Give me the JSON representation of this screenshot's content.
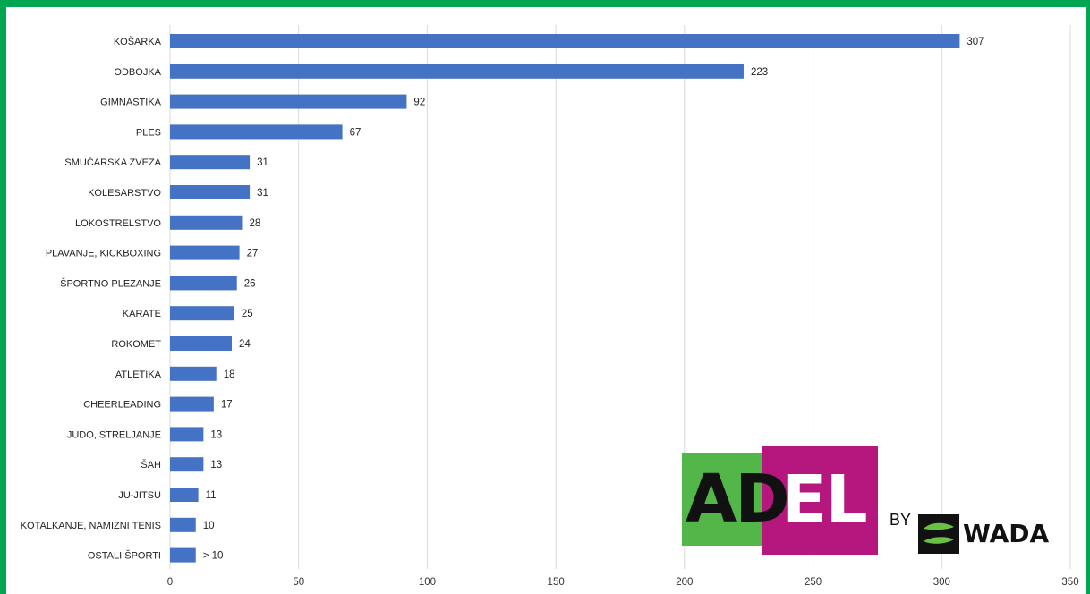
{
  "chart_data": {
    "type": "bar",
    "orientation": "horizontal",
    "categories": [
      "KOŠARKA",
      "ODBOJKA",
      "GIMNASTIKA",
      "PLES",
      "SMUČARSKA ZVEZA",
      "KOLESARSTVO",
      "LOKOSTRELSTVO",
      "PLAVANJE, KICKBOXING",
      "ŠPORTNO PLEZANJE",
      "KARATE",
      "ROKOMET",
      "ATLETIKA",
      "CHEERLEADING",
      "JUDO, STRELJANJE",
      "ŠAH",
      "JU-JITSU",
      "KOTALKANJE, NAMIZNI TENIS",
      "OSTALI ŠPORTI"
    ],
    "values": [
      307,
      223,
      92,
      67,
      31,
      31,
      28,
      27,
      26,
      25,
      24,
      18,
      17,
      13,
      13,
      11,
      10,
      10
    ],
    "value_labels": [
      "307",
      "223",
      "92",
      "67",
      "31",
      "31",
      "28",
      "27",
      "26",
      "25",
      "24",
      "18",
      "17",
      "13",
      "13",
      "11",
      "10",
      "> 10"
    ],
    "xlim": [
      0,
      350
    ],
    "xticks": [
      0,
      50,
      100,
      150,
      200,
      250,
      300,
      350
    ],
    "grid": true,
    "bar_color": "#4472c4",
    "title": "",
    "xlabel": "",
    "ylabel": ""
  },
  "logo": {
    "green_text": "AD",
    "magenta_text": "EL",
    "by": "BY",
    "wada": "WADA",
    "green_color": "#52b748",
    "magenta_color": "#b5177e",
    "frame_color": "#00a651"
  }
}
